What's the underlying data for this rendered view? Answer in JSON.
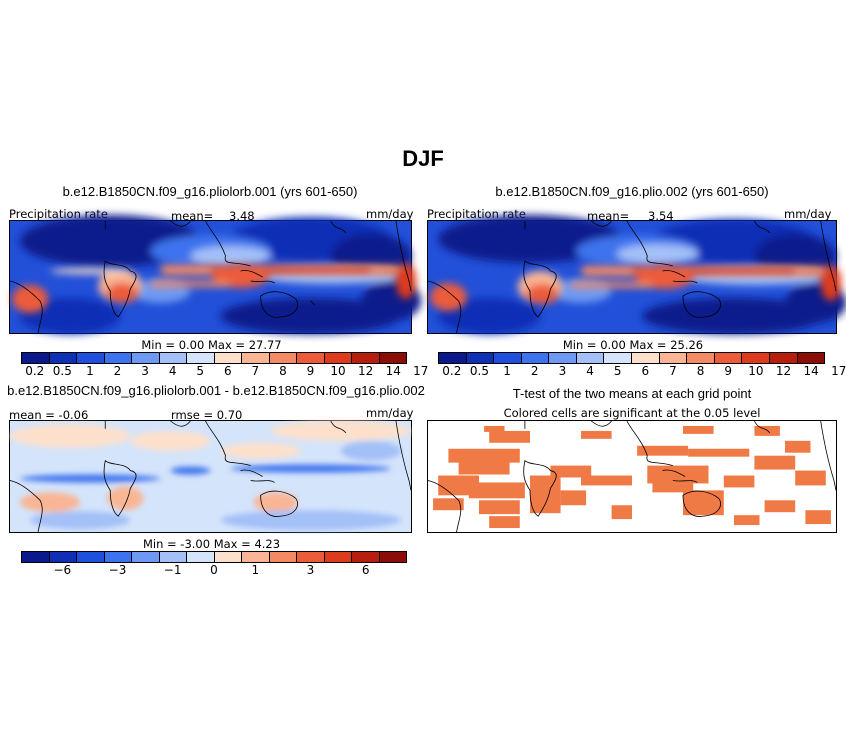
{
  "figure_title": "DJF",
  "panels": {
    "top_left": {
      "title": "b.e12.B1850CN.f09_g16.pliolorb.001 (yrs 601-650)",
      "left_label": "Precipitation rate",
      "mean_label": "mean=",
      "mean_value": "3.48",
      "units": "mm/day",
      "min_max": "Min =     0.00  Max =   27.77"
    },
    "top_right": {
      "title": "b.e12.B1850CN.f09_g16.plio.002 (yrs 601-650)",
      "left_label": "Precipitation rate",
      "mean_label": "mean=",
      "mean_value": "3.54",
      "units": "mm/day",
      "min_max": "Min =     0.00  Max =   25.26"
    },
    "bottom_left": {
      "title": "b.e12.B1850CN.f09_g16.pliolorb.001 - b.e12.B1850CN.f09_g16.plio.002",
      "mean_text": "mean = -0.06",
      "rmse_text": "rmse =    0.70",
      "units": "mm/day",
      "min_max": "Min =  -3.00  Max =    4.23"
    },
    "bottom_right": {
      "title": "T-test of the two means at each grid point",
      "subtitle": "Colored cells are significant at the 0.05 level"
    }
  },
  "colorbars": {
    "precip": {
      "colors": [
        "#0a1a8c",
        "#0f2fb5",
        "#1f4fdd",
        "#3d73ee",
        "#6e99f2",
        "#a3c0f7",
        "#d4e4fb",
        "#fde0cb",
        "#f9b594",
        "#f48a63",
        "#ec5c3a",
        "#dd3a1e",
        "#b81e10",
        "#8c0d05"
      ],
      "labels": [
        "0.2",
        "0.5",
        "1",
        "2",
        "3",
        "4",
        "5",
        "6",
        "7",
        "8",
        "9",
        "10",
        "12",
        "14",
        "17"
      ]
    },
    "diff": {
      "colors": [
        "#0a1a8c",
        "#0f2fb5",
        "#1f4fdd",
        "#3d73ee",
        "#6e99f2",
        "#a3c0f7",
        "#d4e4fb",
        "#fde0cb",
        "#f9b594",
        "#f48a63",
        "#ec5c3a",
        "#dd3a1e",
        "#b81e10",
        "#8c0d05"
      ],
      "labels": [
        "−6",
        "−3",
        "−1",
        "0",
        "1",
        "3",
        "6"
      ]
    }
  },
  "colors": {
    "significant_cell": "#f07a45",
    "ocean_dry": "#1030b0",
    "rain_band": "#e8492a"
  }
}
